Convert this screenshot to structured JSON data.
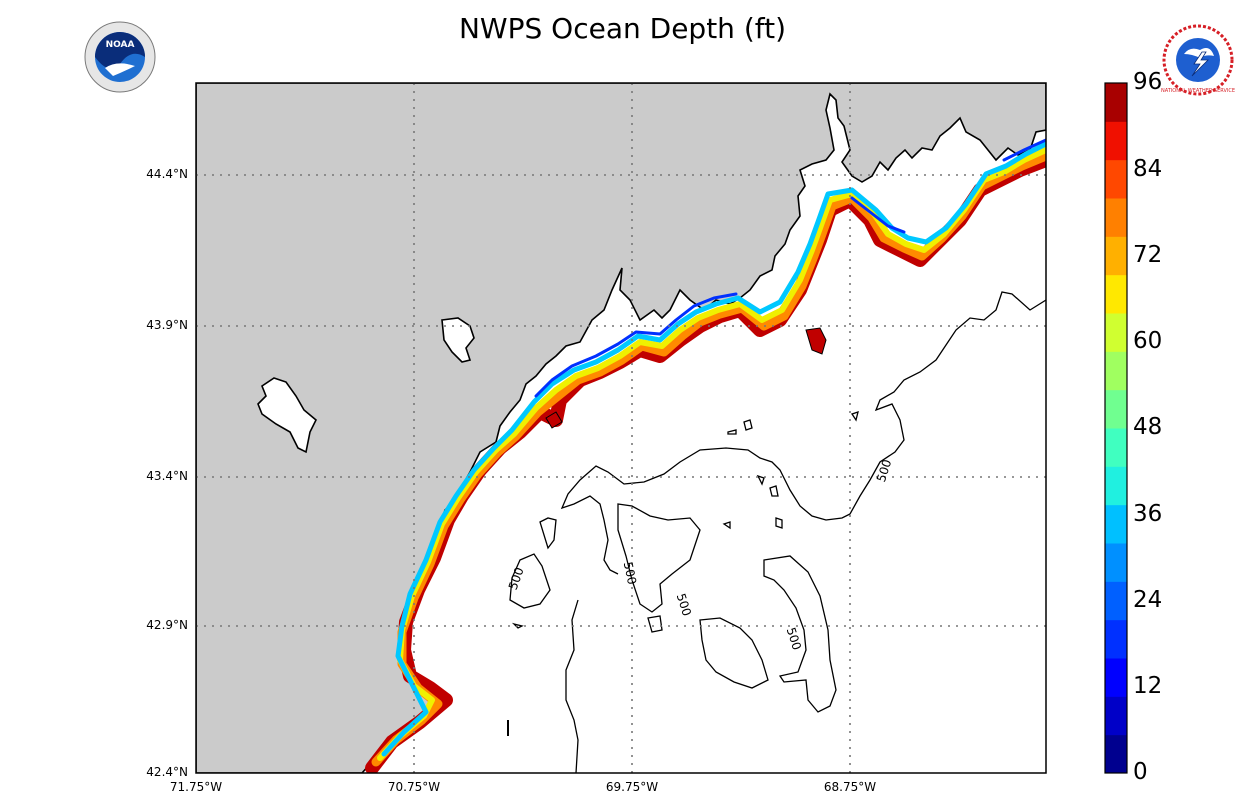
{
  "title": "NWPS Ocean Depth (ft)",
  "logos": {
    "noaa": {
      "text": "NOAA",
      "ring_color": "#e6e6e6",
      "inner_color": "#1f6fd1",
      "dark_color": "#0a2d7a"
    },
    "nws": {
      "ring_text": "NATIONAL WEATHER SERVICE",
      "ring_color": "#d61f26",
      "inner_color": "#1e5fd0"
    }
  },
  "map": {
    "lat_labels": [
      "44.4°N",
      "43.9°N",
      "43.4°N",
      "42.9°N",
      "42.4°N"
    ],
    "lon_labels": [
      "71.75°W",
      "70.75°W",
      "69.75°W",
      "68.75°W"
    ],
    "land_color": "#cbcbcb",
    "ocean_color": "#ffffff",
    "gridline_style": "dotted",
    "contour_label": "500"
  },
  "colorbar": {
    "ticks": [
      "0",
      "12",
      "24",
      "36",
      "48",
      "60",
      "72",
      "84",
      "96"
    ],
    "min": 0,
    "max": 96,
    "colors": [
      "#00008f",
      "#0000c8",
      "#0000ff",
      "#0030ff",
      "#0060ff",
      "#0090ff",
      "#00c0ff",
      "#20f0e0",
      "#40ffc0",
      "#70ff90",
      "#a0ff60",
      "#d0ff30",
      "#ffe800",
      "#ffb000",
      "#ff8000",
      "#ff4800",
      "#f01000",
      "#a80000"
    ]
  }
}
